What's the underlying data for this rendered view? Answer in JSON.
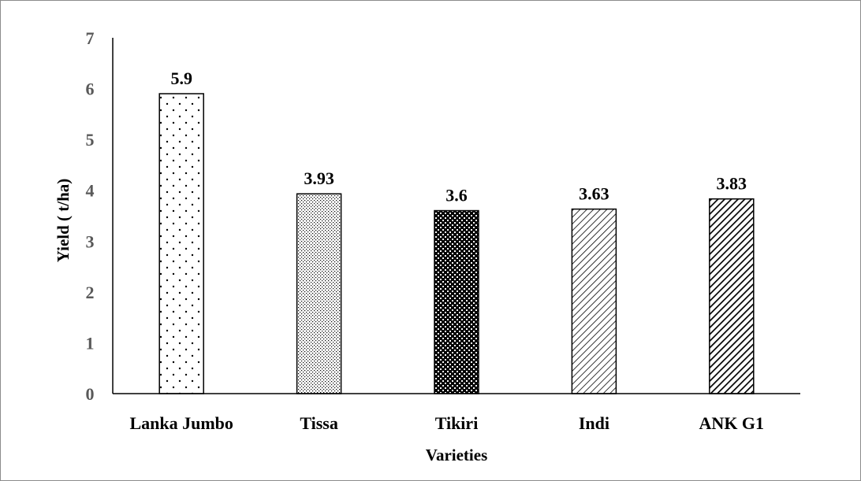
{
  "chart_data": {
    "type": "bar",
    "title": "",
    "xlabel": "Varieties",
    "ylabel": "Yield ( t/ha)",
    "ylim": [
      0,
      7
    ],
    "yticks": [
      0,
      1,
      2,
      3,
      4,
      5,
      6,
      7
    ],
    "categories": [
      "Lanka Jumbo",
      "Tissa",
      "Tikiri",
      "Indi",
      "ANK G1"
    ],
    "values": [
      5.9,
      3.93,
      3.6,
      3.63,
      3.83
    ],
    "data_labels": [
      "5.9",
      "3.93",
      "3.6",
      "3.63",
      "3.83"
    ],
    "bar_patterns": [
      "sparse-dots",
      "fine-dots",
      "checker",
      "light-diagonal",
      "dark-diagonal"
    ],
    "grid": false,
    "legend": "none",
    "colors": {
      "bar_outline": "#000000",
      "axis": "#000000",
      "tick_text": "#595959"
    }
  }
}
